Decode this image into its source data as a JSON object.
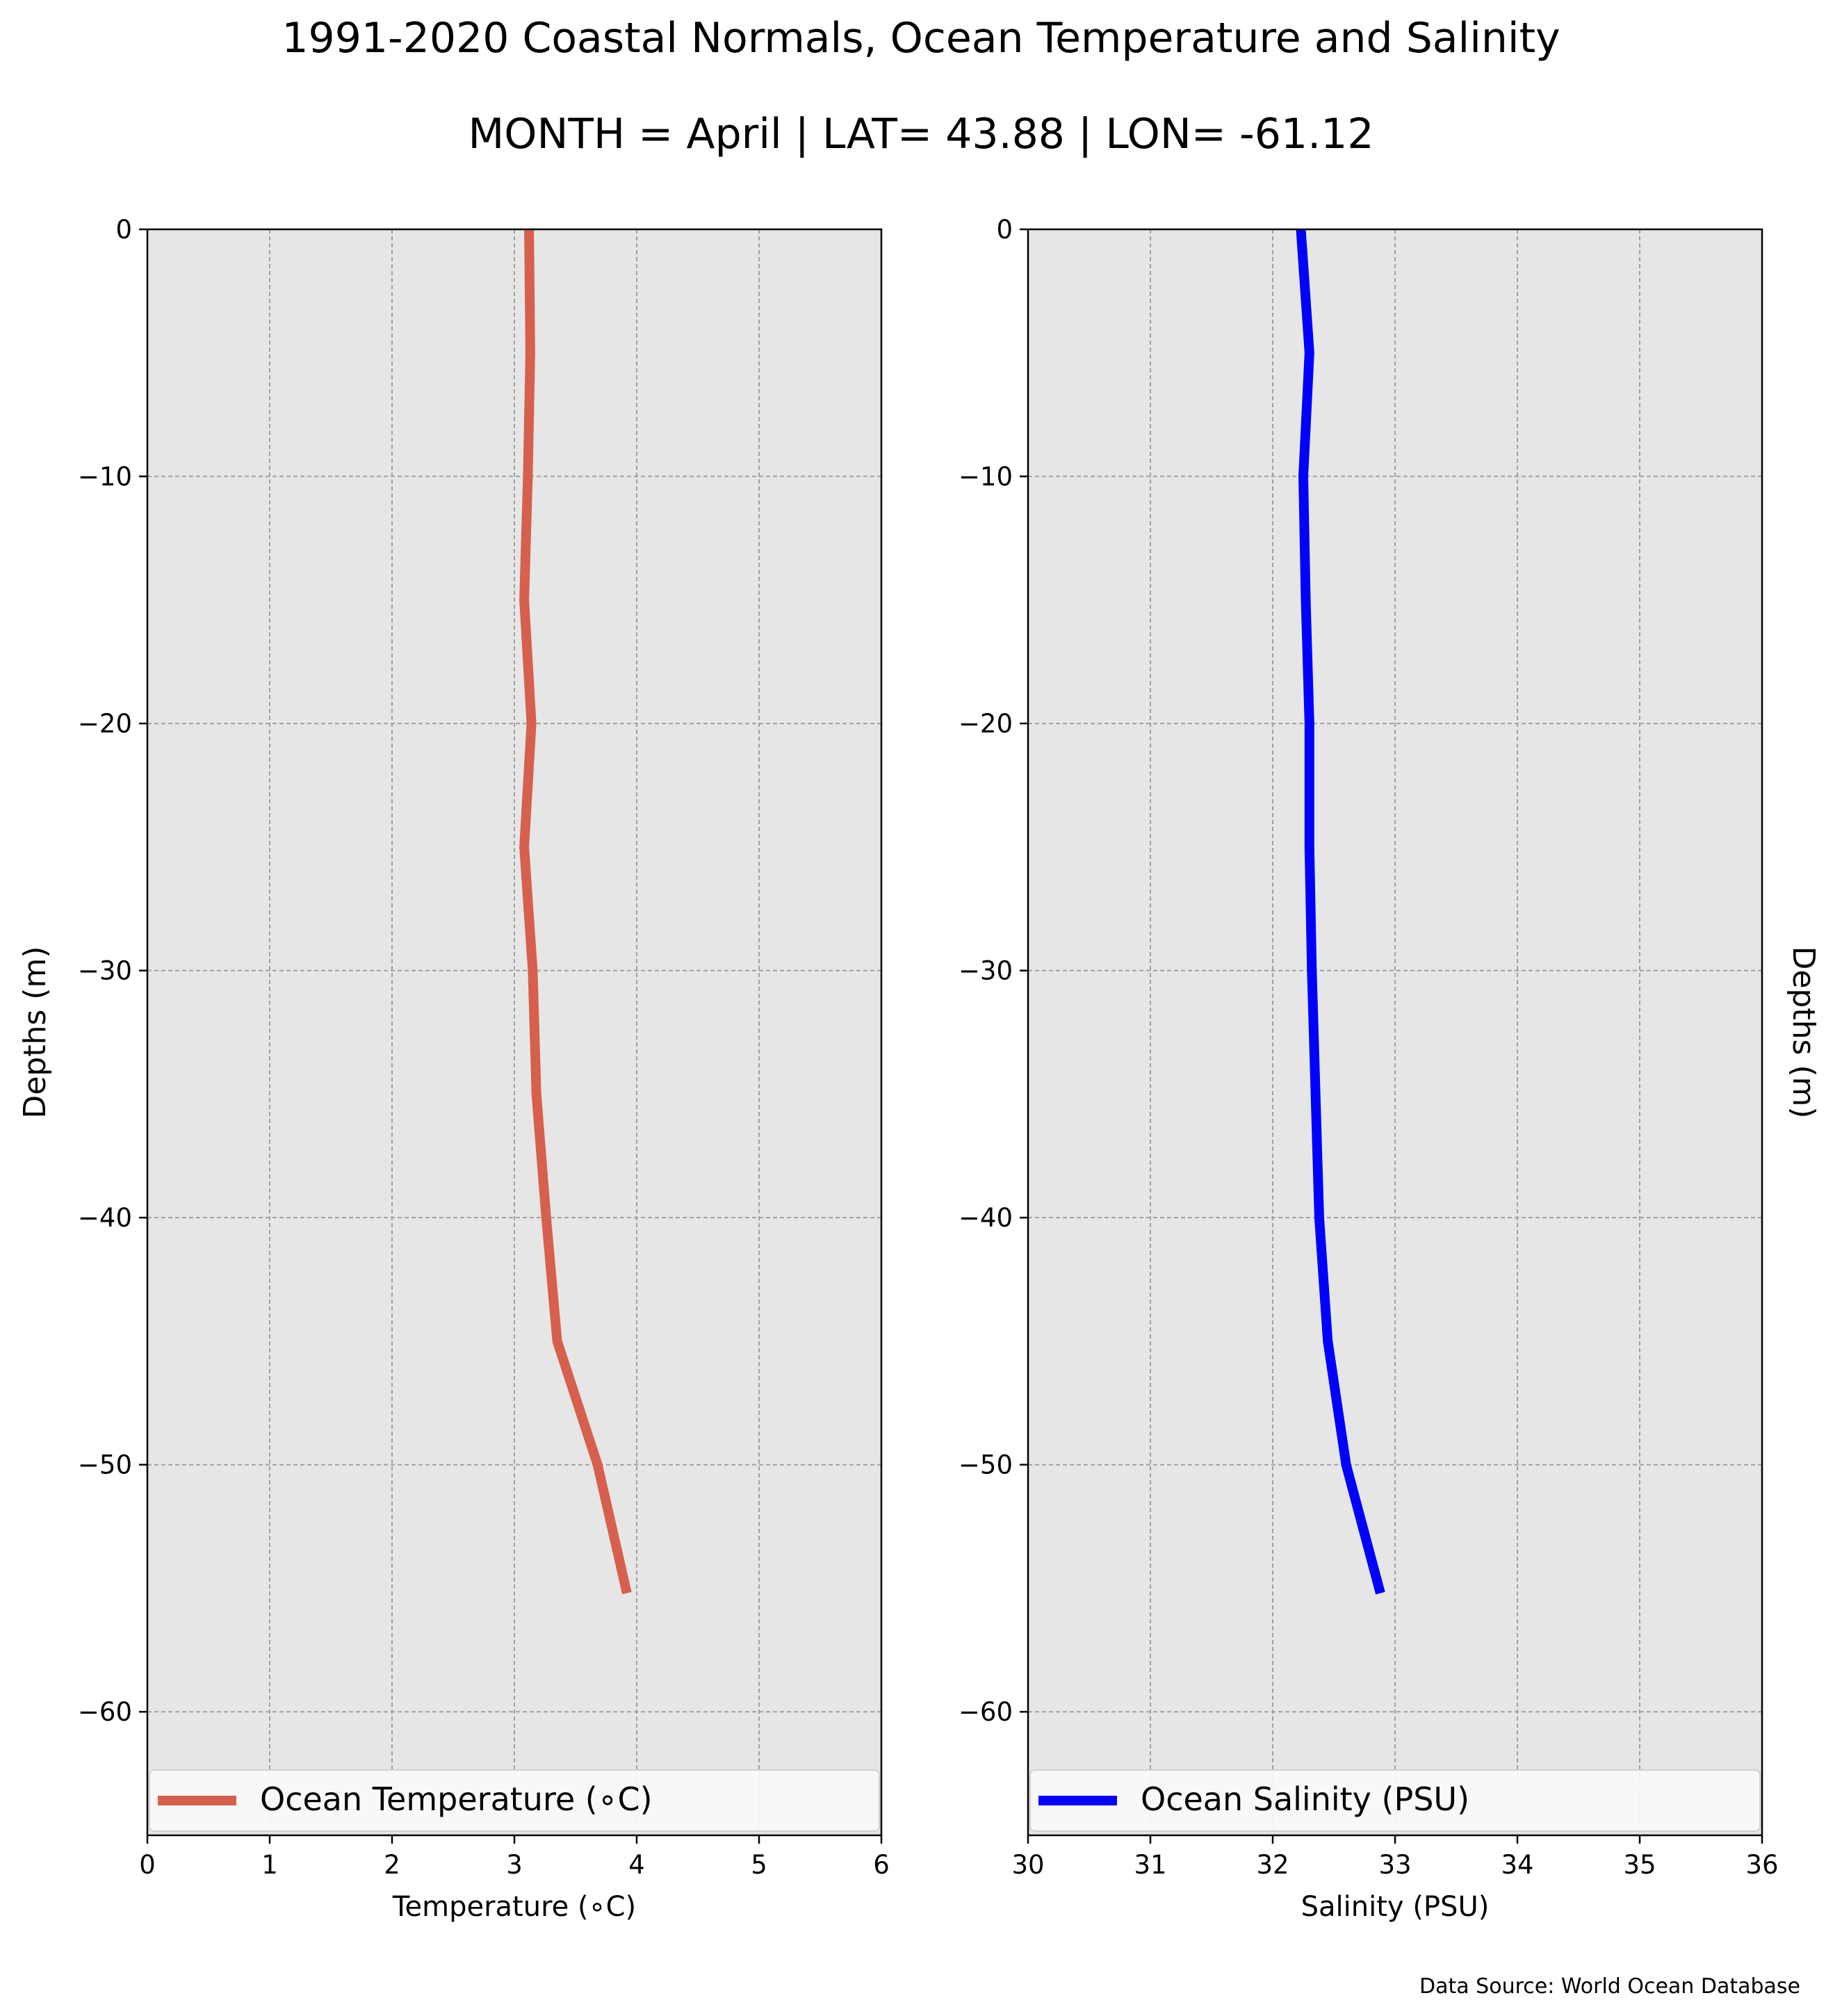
{
  "figure": {
    "title": "1991-2020 Coastal Normals, Ocean Temperature and Salinity",
    "subtitle": "MONTH = April | LAT= 43.88 | LON= -61.12",
    "source": "Data Source: World Ocean Database"
  },
  "chart_data": [
    {
      "type": "line",
      "title": "",
      "xlabel": "Temperature ($^\\circ$C)",
      "xlabel_display": "Temperature (∘C)",
      "ylabel": "Depths (m)",
      "ylabel_side": "left",
      "xlim": [
        0,
        6
      ],
      "ylim": [
        -65,
        0
      ],
      "xticks": [
        0,
        1,
        2,
        3,
        4,
        5,
        6
      ],
      "yticks": [
        0,
        -10,
        -20,
        -30,
        -40,
        -50,
        -60
      ],
      "ytick_labels": [
        "0",
        "−10",
        "−20",
        "−30",
        "−40",
        "−50",
        "−60"
      ],
      "grid": true,
      "background": "#e6e6e6",
      "legend": "bottom",
      "series": [
        {
          "name": "Ocean Temperature (∘C)",
          "color": "#d6604d",
          "x": [
            3.12,
            3.13,
            3.11,
            3.08,
            3.14,
            3.08,
            3.15,
            3.18,
            3.26,
            3.35,
            3.68,
            3.92
          ],
          "y": [
            0,
            -5,
            -10,
            -15,
            -20,
            -25,
            -30,
            -35,
            -40,
            -45,
            -50,
            -55.2
          ]
        }
      ]
    },
    {
      "type": "line",
      "title": "",
      "xlabel": "Salinity (PSU)",
      "ylabel": "Depths (m)",
      "ylabel_side": "right",
      "xlim": [
        30,
        36
      ],
      "ylim": [
        -65,
        0
      ],
      "xticks": [
        30,
        31,
        32,
        33,
        34,
        35,
        36
      ],
      "yticks": [
        0,
        -10,
        -20,
        -30,
        -40,
        -50,
        -60
      ],
      "ytick_labels": [
        "0",
        "−10",
        "−20",
        "−30",
        "−40",
        "−50",
        "−60"
      ],
      "grid": true,
      "background": "#e6e6e6",
      "legend": "bottom",
      "series": [
        {
          "name": "Ocean Salinity (PSU)",
          "color": "#0000ff",
          "x": [
            32.23,
            32.3,
            32.25,
            32.27,
            32.3,
            32.3,
            32.32,
            32.35,
            32.38,
            32.45,
            32.6,
            32.88
          ],
          "y": [
            0,
            -5,
            -10,
            -15,
            -20,
            -25,
            -30,
            -35,
            -40,
            -45,
            -50,
            -55.2
          ]
        }
      ]
    }
  ]
}
